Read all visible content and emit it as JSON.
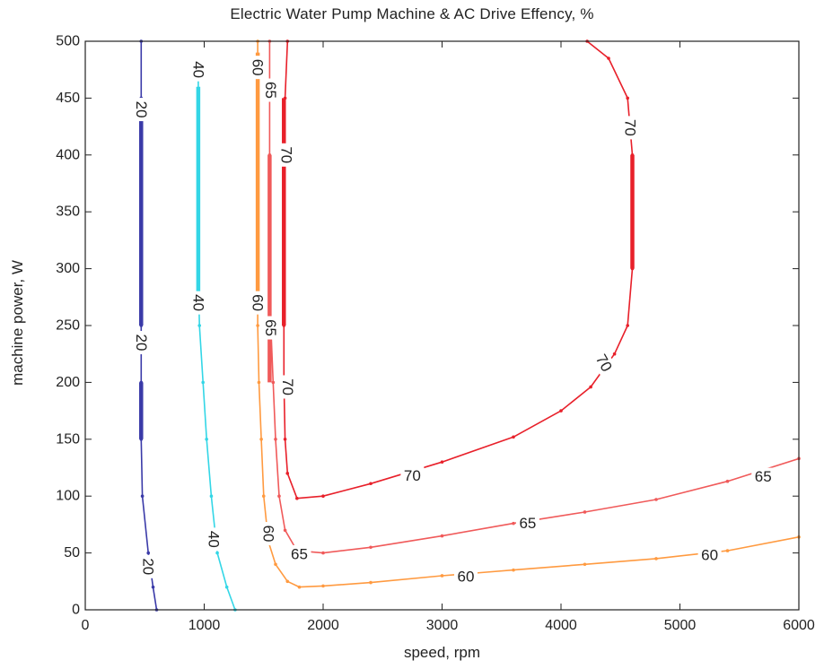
{
  "chart_data": {
    "type": "line",
    "title": "Electric Water Pump Machine & AC Drive Effency, %",
    "xlabel": "speed, rpm",
    "ylabel": "machine power, W",
    "xlim": [
      0,
      6000
    ],
    "ylim": [
      0,
      500
    ],
    "xticks": [
      0,
      1000,
      2000,
      3000,
      4000,
      5000,
      6000
    ],
    "yticks": [
      0,
      50,
      100,
      150,
      200,
      250,
      300,
      350,
      400,
      450,
      500
    ],
    "grid": false,
    "series": [
      {
        "name": "20",
        "color": "#3a3aa8",
        "points": [
          [
            470,
            500
          ],
          [
            470,
            450
          ],
          [
            470,
            400
          ],
          [
            470,
            350
          ],
          [
            470,
            300
          ],
          [
            470,
            250
          ],
          [
            470,
            200
          ],
          [
            470,
            150
          ],
          [
            480,
            100
          ],
          [
            530,
            50
          ],
          [
            570,
            20
          ],
          [
            600,
            0
          ]
        ]
      },
      {
        "name": "40",
        "color": "#33d6e6",
        "points": [
          [
            950,
            470
          ],
          [
            950,
            400
          ],
          [
            950,
            300
          ],
          [
            960,
            250
          ],
          [
            990,
            200
          ],
          [
            1020,
            150
          ],
          [
            1060,
            100
          ],
          [
            1110,
            50
          ],
          [
            1190,
            20
          ],
          [
            1260,
            0
          ]
        ]
      },
      {
        "name": "60",
        "color": "#ff9a40",
        "points": [
          [
            1450,
            500
          ],
          [
            1450,
            400
          ],
          [
            1450,
            300
          ],
          [
            1450,
            250
          ],
          [
            1460,
            200
          ],
          [
            1480,
            150
          ],
          [
            1500,
            100
          ],
          [
            1540,
            60
          ],
          [
            1600,
            40
          ],
          [
            1700,
            25
          ],
          [
            1800,
            20
          ],
          [
            2000,
            21
          ],
          [
            2400,
            24
          ],
          [
            3000,
            30
          ],
          [
            3600,
            35
          ],
          [
            4200,
            40
          ],
          [
            4800,
            45
          ],
          [
            5400,
            52
          ],
          [
            6000,
            64
          ]
        ]
      },
      {
        "name": "65",
        "color": "#f05a5a",
        "points": [
          [
            1550,
            500
          ],
          [
            1550,
            450
          ],
          [
            1550,
            400
          ],
          [
            1550,
            300
          ],
          [
            1560,
            250
          ],
          [
            1580,
            200
          ],
          [
            1600,
            150
          ],
          [
            1630,
            100
          ],
          [
            1680,
            70
          ],
          [
            1780,
            52
          ],
          [
            2000,
            50
          ],
          [
            2400,
            55
          ],
          [
            3000,
            65
          ],
          [
            3600,
            76
          ],
          [
            4200,
            86
          ],
          [
            4800,
            97
          ],
          [
            5400,
            113
          ],
          [
            6000,
            133
          ]
        ]
      },
      {
        "name": "70",
        "color": "#e8202a",
        "points": [
          [
            1700,
            500
          ],
          [
            1680,
            450
          ],
          [
            1670,
            400
          ],
          [
            1670,
            350
          ],
          [
            1670,
            300
          ],
          [
            1670,
            250
          ],
          [
            1670,
            200
          ],
          [
            1680,
            150
          ],
          [
            1700,
            120
          ],
          [
            1780,
            98
          ],
          [
            2000,
            100
          ],
          [
            2400,
            111
          ],
          [
            3000,
            130
          ],
          [
            3600,
            152
          ],
          [
            4000,
            175
          ],
          [
            4250,
            196
          ],
          [
            4450,
            225
          ],
          [
            4560,
            250
          ],
          [
            4600,
            300
          ],
          [
            4600,
            400
          ],
          [
            4560,
            450
          ],
          [
            4400,
            485
          ],
          [
            4220,
            500
          ]
        ]
      }
    ],
    "labels": [
      {
        "text": "20",
        "x": 470,
        "y": 440,
        "angle": 90
      },
      {
        "text": "20",
        "x": 470,
        "y": 235,
        "angle": 90
      },
      {
        "text": "20",
        "x": 530,
        "y": 38,
        "angle": 90
      },
      {
        "text": "40",
        "x": 950,
        "y": 475,
        "angle": 90
      },
      {
        "text": "40",
        "x": 950,
        "y": 270,
        "angle": 90
      },
      {
        "text": "40",
        "x": 1080,
        "y": 62,
        "angle": 90
      },
      {
        "text": "60",
        "x": 1450,
        "y": 477,
        "angle": 90
      },
      {
        "text": "60",
        "x": 1450,
        "y": 270,
        "angle": 90
      },
      {
        "text": "60",
        "x": 1540,
        "y": 67,
        "angle": 90
      },
      {
        "text": "60",
        "x": 3200,
        "y": 29,
        "angle": 0
      },
      {
        "text": "60",
        "x": 5250,
        "y": 48,
        "angle": 0
      },
      {
        "text": "65",
        "x": 1560,
        "y": 457,
        "angle": 90
      },
      {
        "text": "65",
        "x": 1560,
        "y": 248,
        "angle": 90
      },
      {
        "text": "65",
        "x": 1800,
        "y": 49,
        "angle": 0
      },
      {
        "text": "65",
        "x": 3720,
        "y": 76,
        "angle": 0
      },
      {
        "text": "65",
        "x": 5700,
        "y": 117,
        "angle": 0
      },
      {
        "text": "70",
        "x": 1690,
        "y": 400,
        "angle": 90
      },
      {
        "text": "70",
        "x": 1700,
        "y": 196,
        "angle": 90
      },
      {
        "text": "70",
        "x": 2750,
        "y": 118,
        "angle": 0
      },
      {
        "text": "70",
        "x": 4360,
        "y": 217,
        "angle": 60
      },
      {
        "text": "70",
        "x": 4580,
        "y": 424,
        "angle": 90
      }
    ],
    "highlights": [
      {
        "series": "20",
        "x": 470,
        "y_from": 250,
        "y_to": 430
      },
      {
        "series": "20",
        "x": 470,
        "y_from": 150,
        "y_to": 200
      },
      {
        "series": "40",
        "x": 950,
        "y_from": 280,
        "y_to": 460
      },
      {
        "series": "60",
        "x": 1450,
        "y_from": 280,
        "y_to": 490
      },
      {
        "series": "65",
        "x": 1550,
        "y_from": 200,
        "y_to": 400
      },
      {
        "series": "70",
        "x": 1670,
        "y_from": 250,
        "y_to": 450
      },
      {
        "series": "70",
        "x": 4600,
        "y_from": 300,
        "y_to": 400
      }
    ]
  }
}
